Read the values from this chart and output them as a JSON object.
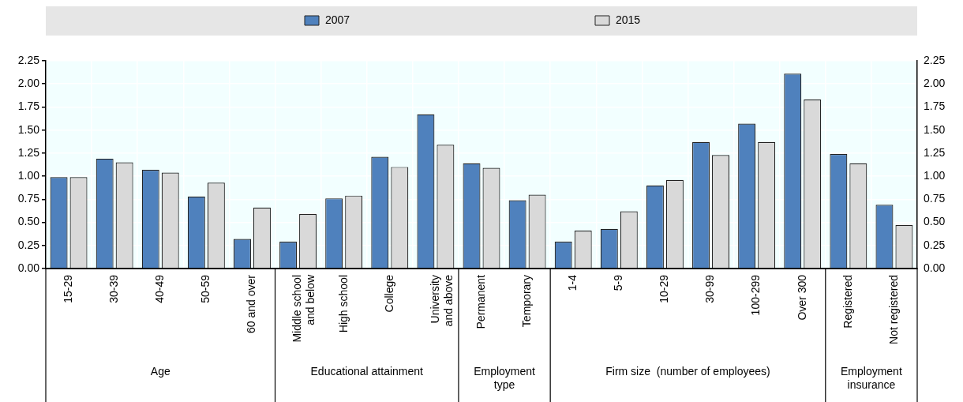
{
  "chart_data": {
    "type": "bar",
    "categories": [
      "15-29",
      "30-39",
      "40-49",
      "50-59",
      "60 and over",
      "Middle school and below",
      "High school",
      "College",
      "University and above",
      "Permanent",
      "Temporary",
      "1-4",
      "5-9",
      "10-29",
      "30-99",
      "100-299",
      "Over 300",
      "Registered",
      "Not registered"
    ],
    "series": [
      {
        "name": "2007",
        "color": "#4f81bd",
        "values": [
          0.99,
          1.19,
          1.07,
          0.78,
          0.32,
          0.29,
          0.76,
          1.21,
          1.67,
          1.14,
          0.74,
          0.29,
          0.43,
          0.9,
          1.37,
          1.57,
          2.11,
          1.24,
          0.69
        ]
      },
      {
        "name": "2015",
        "color": "#d9d9d9",
        "values": [
          0.99,
          1.15,
          1.04,
          0.93,
          0.66,
          0.59,
          0.79,
          1.1,
          1.34,
          1.09,
          0.8,
          0.41,
          0.62,
          0.96,
          1.23,
          1.37,
          1.83,
          1.14,
          0.47
        ]
      }
    ],
    "ylim": [
      0,
      2.25
    ],
    "yticks": [
      {
        "value": 0,
        "label": "0.00"
      },
      {
        "value": 0.25,
        "label": "0.25"
      },
      {
        "value": 0.5,
        "label": "0.50"
      },
      {
        "value": 0.75,
        "label": "0.75"
      },
      {
        "value": 1,
        "label": "1.00"
      },
      {
        "value": 1.25,
        "label": "1.25"
      },
      {
        "value": 1.5,
        "label": "1.50"
      },
      {
        "value": 1.75,
        "label": "1.75"
      },
      {
        "value": 2,
        "label": "2.00"
      },
      {
        "value": 2.25,
        "label": "2.25"
      }
    ],
    "y2lim": [
      0,
      2.25
    ],
    "y2ticks": [
      {
        "value": 0,
        "label": "0.00"
      },
      {
        "value": 0.25,
        "label": "0.25"
      },
      {
        "value": 0.5,
        "label": "0.50"
      },
      {
        "value": 0.75,
        "label": "0.75"
      },
      {
        "value": 1,
        "label": "1.00"
      },
      {
        "value": 1.25,
        "label": "1.25"
      },
      {
        "value": 1.5,
        "label": "1.50"
      },
      {
        "value": 1.75,
        "label": "1.75"
      },
      {
        "value": 2,
        "label": "2.00"
      },
      {
        "value": 2.25,
        "label": "2.25"
      }
    ],
    "annotations": [
      "Age",
      "Educational attainment",
      "Employment type",
      "Firm size  (number of employees)",
      "Employment insurance"
    ],
    "grid": true,
    "legend": "top"
  }
}
